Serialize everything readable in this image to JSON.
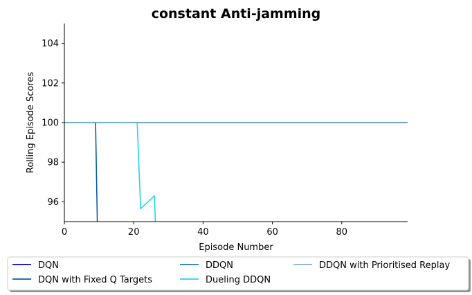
{
  "chart_data": {
    "type": "line",
    "title": "constant Anti-jamming",
    "xlabel": "Episode Number",
    "ylabel": "Rolling Episode Scores",
    "xlim": [
      0,
      99
    ],
    "ylim": [
      95,
      105
    ],
    "xticks": [
      "0",
      "20",
      "40",
      "60",
      "80"
    ],
    "xtick_values": [
      0,
      20,
      40,
      60,
      80
    ],
    "yticks": [
      "96",
      "98",
      "100",
      "102",
      "104"
    ],
    "ytick_values": [
      96,
      98,
      100,
      102,
      104
    ],
    "grid": false,
    "legend_position": "bottom, below axes, 3 columns",
    "series": [
      {
        "name": "DQN",
        "color": "#0000cc",
        "x": [
          0,
          99
        ],
        "y": [
          100,
          100
        ]
      },
      {
        "name": "DQN with Fixed Q Targets",
        "color": "#0b5aa0",
        "x": [
          0,
          9,
          9.6
        ],
        "y": [
          100,
          100,
          94
        ]
      },
      {
        "name": "DDQN",
        "color": "#1f77b4",
        "x": [
          0,
          99
        ],
        "y": [
          100,
          100
        ]
      },
      {
        "name": "Dueling DDQN",
        "color": "#22d3ee",
        "x": [
          0,
          21,
          22,
          26,
          26.4
        ],
        "y": [
          100,
          100,
          95.65,
          96.3,
          94
        ]
      },
      {
        "name": "DDQN with Prioritised Replay",
        "color": "#7fafd6",
        "x": [
          0,
          99
        ],
        "y": [
          100,
          100
        ]
      }
    ]
  }
}
